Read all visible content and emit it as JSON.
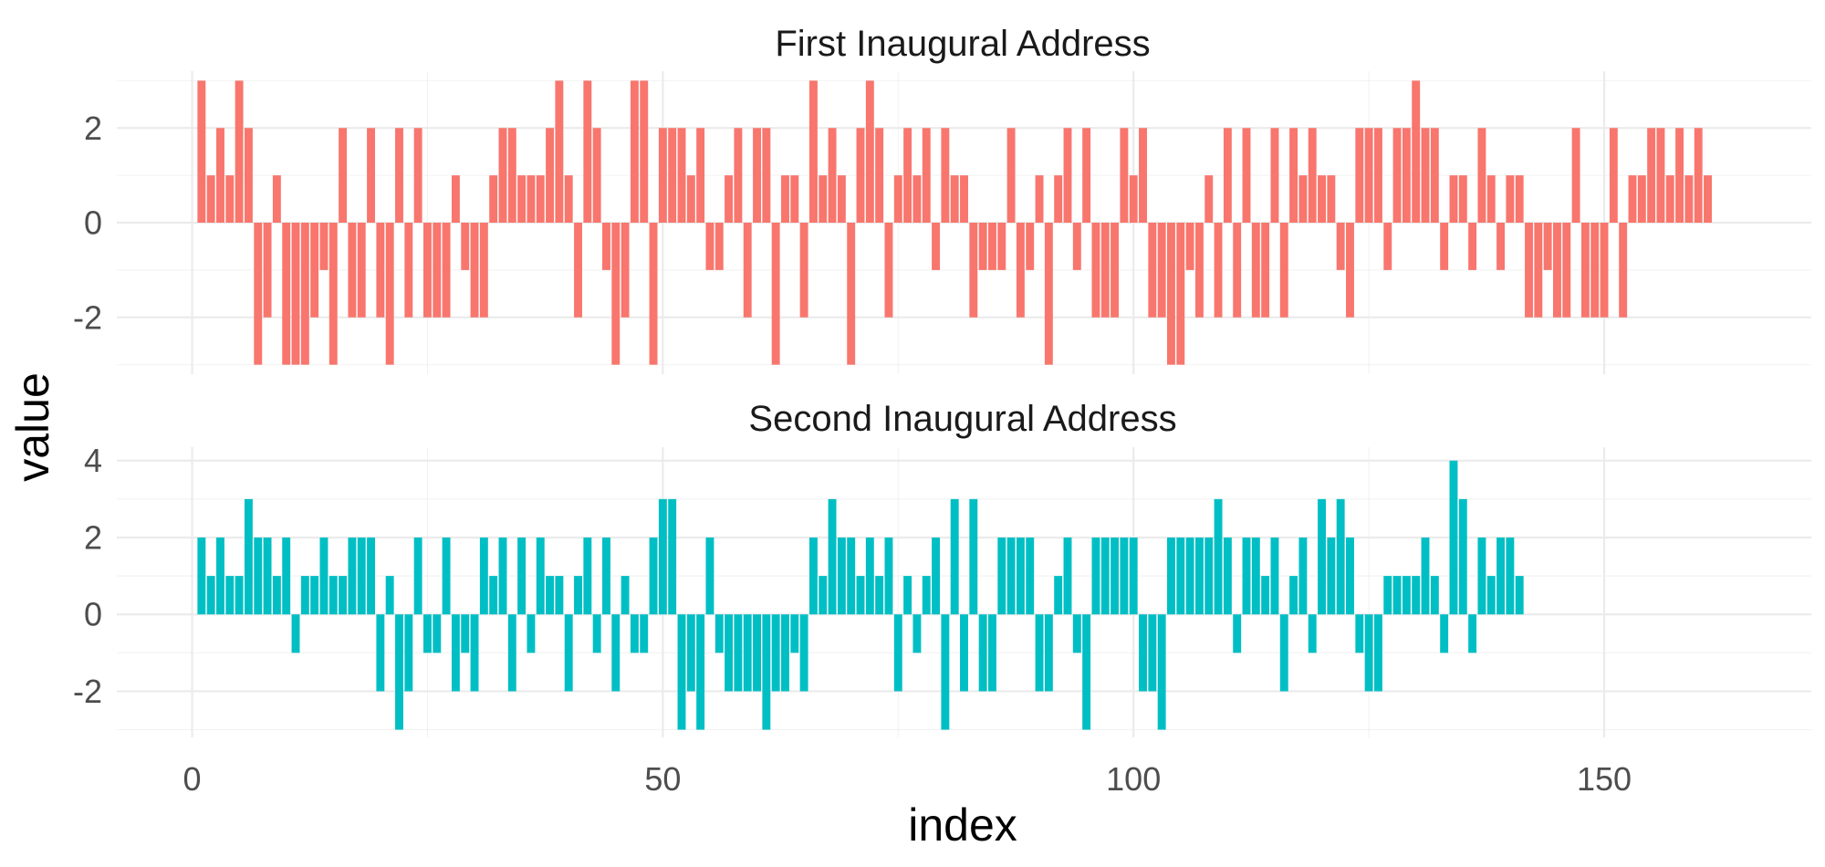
{
  "chart_data": {
    "type": "bar",
    "xlabel": "index",
    "ylabel": "value",
    "x_range": [
      -8,
      172
    ],
    "x_ticks": [
      0,
      50,
      100,
      150
    ],
    "grid": true,
    "legend": "none",
    "panels": [
      {
        "title": "First Inaugural Address",
        "color": "#F8766D",
        "y_range": [
          -3.2,
          3.2
        ],
        "y_ticks": [
          -2,
          0,
          2
        ],
        "values": [
          3,
          1,
          2,
          1,
          3,
          2,
          -3,
          -2,
          1,
          -3,
          -3,
          -3,
          -2,
          -1,
          -3,
          2,
          -2,
          -2,
          2,
          -2,
          -3,
          2,
          -2,
          2,
          -2,
          -2,
          -2,
          1,
          -1,
          -2,
          -2,
          1,
          2,
          2,
          1,
          1,
          1,
          2,
          3,
          1,
          -2,
          3,
          2,
          -1,
          -3,
          -2,
          3,
          3,
          -3,
          2,
          2,
          2,
          1,
          2,
          -1,
          -1,
          1,
          2,
          -2,
          2,
          2,
          -3,
          1,
          1,
          -2,
          3,
          1,
          2,
          1,
          -3,
          2,
          3,
          2,
          -2,
          1,
          2,
          1,
          2,
          -1,
          2,
          1,
          1,
          -2,
          -1,
          -1,
          -1,
          2,
          -2,
          -1,
          1,
          -3,
          1,
          2,
          -1,
          2,
          -2,
          -2,
          -2,
          2,
          1,
          2,
          -2,
          -2,
          -3,
          -3,
          -1,
          -2,
          1,
          -2,
          2,
          -2,
          2,
          -2,
          -2,
          2,
          -2,
          2,
          1,
          2,
          1,
          1,
          -1,
          -2,
          2,
          2,
          2,
          -1,
          2,
          2,
          3,
          2,
          2,
          -1,
          1,
          1,
          -1,
          2,
          1,
          -1,
          1,
          1,
          -2,
          -2,
          -1,
          -2,
          -2,
          2,
          -2,
          -2,
          -2,
          2,
          -2,
          1,
          1,
          2,
          2,
          1,
          2,
          1,
          2,
          1
        ],
        "tick_labels": [
          "-2",
          "0",
          "2"
        ]
      },
      {
        "title": "Second Inaugural Address",
        "color": "#00BFC4",
        "y_range": [
          -3.2,
          4.35
        ],
        "y_ticks": [
          -2,
          0,
          2,
          4
        ],
        "values": [
          2,
          1,
          2,
          1,
          1,
          3,
          2,
          2,
          1,
          2,
          -1,
          1,
          1,
          2,
          1,
          1,
          2,
          2,
          2,
          -2,
          1,
          -3,
          -2,
          2,
          -1,
          -1,
          2,
          -2,
          -1,
          -2,
          2,
          1,
          2,
          -2,
          2,
          -1,
          2,
          1,
          1,
          -2,
          1,
          2,
          -1,
          2,
          -2,
          1,
          -1,
          -1,
          2,
          3,
          3,
          -3,
          -2,
          -3,
          2,
          -1,
          -2,
          -2,
          -2,
          -2,
          -3,
          -2,
          -2,
          -1,
          -2,
          2,
          1,
          3,
          2,
          2,
          1,
          2,
          1,
          2,
          -2,
          1,
          -1,
          1,
          2,
          -3,
          3,
          -2,
          3,
          -2,
          -2,
          2,
          2,
          2,
          2,
          -2,
          -2,
          1,
          2,
          -1,
          -3,
          2,
          2,
          2,
          2,
          2,
          -2,
          -2,
          -3,
          2,
          2,
          2,
          2,
          2,
          3,
          2,
          -1,
          2,
          2,
          1,
          2,
          -2,
          1,
          2,
          -1,
          3,
          2,
          3,
          2,
          -1,
          -2,
          -2,
          1,
          1,
          1,
          1,
          2,
          1,
          -1,
          4,
          3,
          -1,
          2,
          1,
          2,
          2,
          1
        ],
        "tick_labels": [
          "-2",
          "0",
          "2",
          "4"
        ]
      }
    ],
    "x_tick_labels": [
      "0",
      "50",
      "100",
      "150"
    ]
  }
}
